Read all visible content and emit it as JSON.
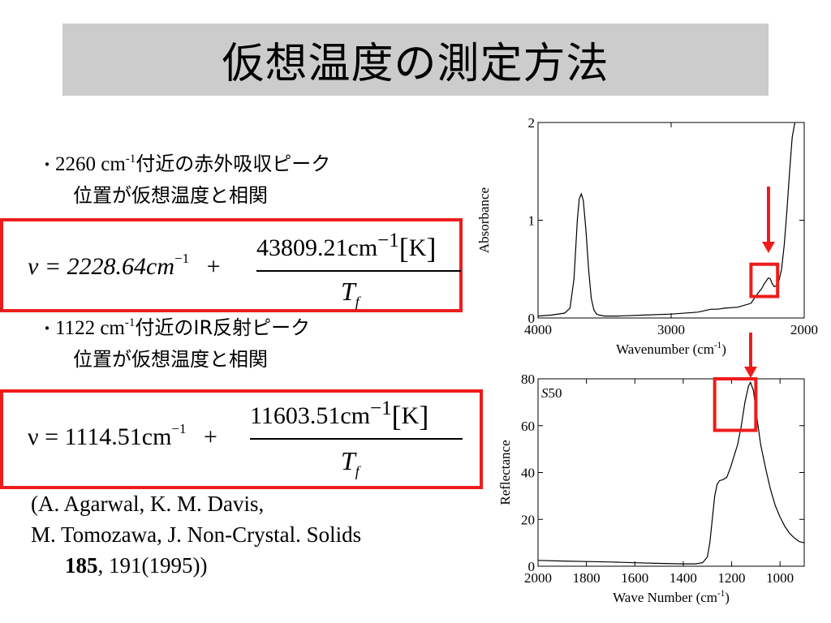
{
  "title": "仮想温度の測定方法",
  "bullet1": {
    "mark": "・",
    "num": "2260 cm",
    "sup": "-1",
    "text": "付近の赤外吸収ピーク",
    "line2": "位置が仮想温度と相関"
  },
  "eq1": {
    "lhs": "ν = 2228.64cm",
    "lhs_exp": "−1",
    "plus": "+",
    "numerator": "43809.21cm",
    "num_exp": "−1",
    "unit": "K",
    "den": "T",
    "den_sub": "f"
  },
  "bullet2": {
    "mark": "・",
    "num": "1122 cm",
    "sup": "-1",
    "text": "付近のIR反射ピーク",
    "line2": "位置が仮想温度と相関"
  },
  "eq2": {
    "lhs": "ν = 1114.51cm",
    "lhs_exp": "−1",
    "plus": "+",
    "numerator": "11603.51cm",
    "num_exp": "−1",
    "unit": "K",
    "den": "T",
    "den_sub": "f"
  },
  "citation": {
    "line1": "(A. Agarwal, K. M. Davis,",
    "line2": "M. Tomozawa, J. Non-Crystal. Solids",
    "volume": "185",
    "rest": ", 191(1995))"
  },
  "colors": {
    "highlight": "#ee1c1c",
    "title_bg": "#cccccc"
  },
  "chart_data": [
    {
      "type": "line",
      "xlabel": "Wavenumber (cm-1)",
      "ylabel": "Absorbance",
      "xlim": [
        4000,
        2000
      ],
      "ylim": [
        0,
        2
      ],
      "xticks": [
        4000,
        3000,
        2000
      ],
      "yticks": [
        0,
        1,
        2
      ],
      "x": [
        4000,
        3900,
        3800,
        3760,
        3730,
        3705,
        3690,
        3675,
        3660,
        3640,
        3620,
        3600,
        3580,
        3560,
        3540,
        3500,
        3400,
        3200,
        3000,
        2800,
        2700,
        2650,
        2600,
        2500,
        2400,
        2350,
        2320,
        2300,
        2285,
        2270,
        2255,
        2240,
        2225,
        2210,
        2190,
        2170,
        2150,
        2130,
        2110,
        2090,
        2070
      ],
      "y": [
        0.02,
        0.03,
        0.05,
        0.1,
        0.4,
        1.0,
        1.22,
        1.27,
        1.2,
        0.9,
        0.5,
        0.2,
        0.08,
        0.04,
        0.03,
        0.02,
        0.02,
        0.03,
        0.04,
        0.06,
        0.09,
        0.09,
        0.1,
        0.11,
        0.15,
        0.25,
        0.3,
        0.35,
        0.38,
        0.41,
        0.4,
        0.35,
        0.32,
        0.33,
        0.38,
        0.5,
        0.75,
        1.1,
        1.5,
        1.85,
        2.0
      ],
      "highlight_region": {
        "x": [
          2400,
          2200
        ],
        "y": [
          0.22,
          0.55
        ]
      }
    },
    {
      "type": "line",
      "xlabel": "Wave Number (cm-1)",
      "ylabel": "Reflectance",
      "annotation": "S50",
      "xlim": [
        2000,
        900
      ],
      "ylim": [
        0,
        80
      ],
      "xticks": [
        2000,
        1800,
        1600,
        1400,
        1200,
        1000
      ],
      "yticks": [
        0,
        20,
        40,
        60,
        80
      ],
      "x": [
        2000,
        1900,
        1800,
        1700,
        1600,
        1500,
        1400,
        1350,
        1320,
        1300,
        1290,
        1280,
        1270,
        1260,
        1250,
        1235,
        1220,
        1205,
        1190,
        1175,
        1160,
        1145,
        1130,
        1122,
        1110,
        1095,
        1080,
        1060,
        1040,
        1020,
        1000,
        980,
        960,
        940,
        920,
        900
      ],
      "y": [
        2.5,
        2.2,
        2.0,
        1.8,
        1.5,
        1.2,
        1.0,
        1.0,
        1.5,
        4,
        10,
        20,
        30,
        35,
        36.5,
        37,
        38,
        42,
        47,
        52,
        60,
        70,
        77,
        78.5,
        75,
        63,
        52,
        42,
        33,
        26,
        21,
        17,
        14,
        12,
        10.5,
        10
      ],
      "highlight_region": {
        "x": [
          1270,
          1100
        ],
        "y": [
          58,
          80
        ]
      }
    }
  ]
}
